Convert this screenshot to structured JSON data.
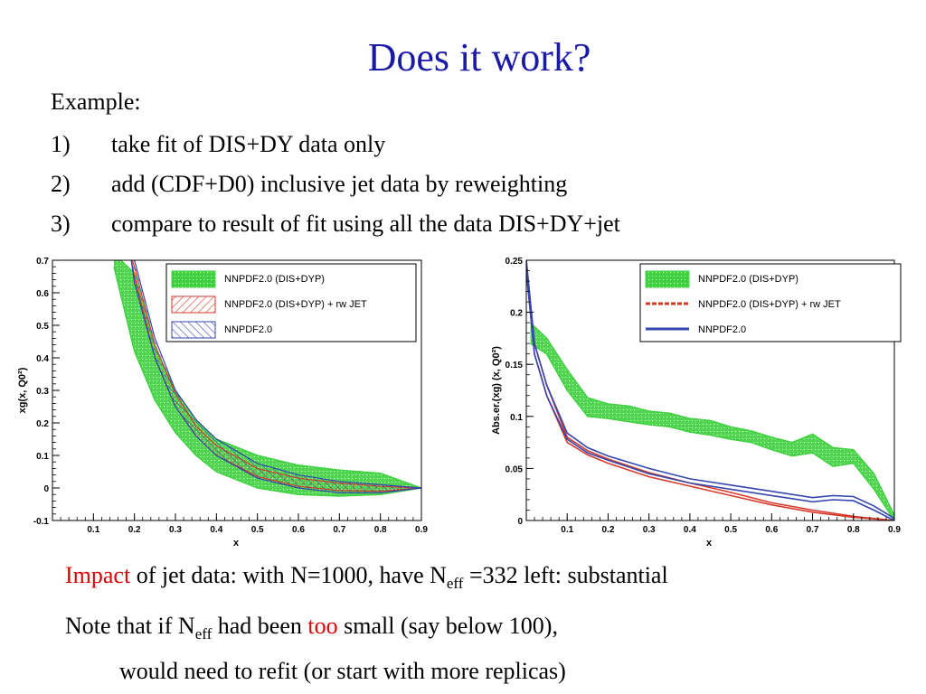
{
  "slide": {
    "title": "Does it work?",
    "example_label": "Example:",
    "steps": [
      {
        "num": "1)",
        "text": "take fit of DIS+DY data only"
      },
      {
        "num": "2)",
        "text": "add (CDF+D0) inclusive jet data by reweighting"
      },
      {
        "num": "3)",
        "text": "compare to result of fit using all the data DIS+DY+jet"
      }
    ],
    "impact": {
      "highlight": "Impact",
      "text_a": " of jet data: with N=1000, have N",
      "sub": "eff",
      "text_b": " =332 left: substantial"
    },
    "note": {
      "text_a": "Note that if N",
      "sub": "eff",
      "text_b": " had been ",
      "highlight": "too",
      "text_c": " small (say below 100),",
      "line2": "would need to refit (or start with more replicas)"
    }
  },
  "colors": {
    "title": "#1a1aa6",
    "highlight": "#e00000",
    "green_band": "#3fd13f",
    "red_band": "#d63a2a",
    "blue_band": "#3446b0"
  },
  "chart_data": [
    {
      "type": "area",
      "xlabel": "x",
      "ylabel": "xg(x, Q0²)",
      "xlim": [
        0.0,
        0.9
      ],
      "ylim": [
        -0.1,
        0.7
      ],
      "xticks": [
        "0.1",
        "0.2",
        "0.3",
        "0.4",
        "0.5",
        "0.6",
        "0.7",
        "0.8",
        "0.9"
      ],
      "yticks": [
        "-0.1",
        "0",
        "0.1",
        "0.2",
        "0.3",
        "0.4",
        "0.5",
        "0.6",
        "0.7"
      ],
      "legend_position": "top-right",
      "grid": false,
      "series": [
        {
          "name": "NNPDF2.0 (DIS+DYP)",
          "style": "green-band",
          "x": [
            0.15,
            0.2,
            0.25,
            0.3,
            0.35,
            0.4,
            0.5,
            0.6,
            0.7,
            0.8,
            0.9
          ],
          "lo": [
            0.68,
            0.42,
            0.27,
            0.17,
            0.1,
            0.05,
            0.0,
            -0.02,
            -0.025,
            -0.02,
            0.0
          ],
          "hi": [
            0.72,
            0.66,
            0.43,
            0.3,
            0.21,
            0.15,
            0.1,
            0.07,
            0.055,
            0.045,
            0.0
          ]
        },
        {
          "name": "NNPDF2.0 (DIS+DYP) + rw JET",
          "style": "red-band",
          "x": [
            0.19,
            0.2,
            0.25,
            0.3,
            0.35,
            0.4,
            0.5,
            0.6,
            0.7,
            0.8,
            0.9
          ],
          "lo": [
            0.72,
            0.65,
            0.4,
            0.25,
            0.16,
            0.1,
            0.035,
            0.005,
            -0.008,
            -0.01,
            0.0
          ],
          "hi": [
            0.72,
            0.68,
            0.44,
            0.29,
            0.19,
            0.13,
            0.06,
            0.03,
            0.015,
            0.005,
            0.0
          ]
        },
        {
          "name": "NNPDF2.0",
          "style": "blue-band",
          "x": [
            0.19,
            0.2,
            0.25,
            0.3,
            0.35,
            0.4,
            0.5,
            0.6,
            0.7,
            0.8,
            0.9
          ],
          "lo": [
            0.72,
            0.63,
            0.4,
            0.25,
            0.16,
            0.1,
            0.03,
            0.0,
            -0.015,
            -0.015,
            0.0
          ],
          "hi": [
            0.72,
            0.7,
            0.46,
            0.3,
            0.21,
            0.15,
            0.075,
            0.04,
            0.02,
            0.01,
            0.0
          ]
        }
      ]
    },
    {
      "type": "area",
      "xlabel": "x",
      "ylabel": "Abs.er.(xg) (x, Q0²)",
      "xlim": [
        0.0,
        0.9
      ],
      "ylim": [
        0,
        0.25
      ],
      "xticks": [
        "0.1",
        "0.2",
        "0.3",
        "0.4",
        "0.5",
        "0.6",
        "0.7",
        "0.8",
        "0.9"
      ],
      "yticks": [
        "0",
        "0.05",
        "0.1",
        "0.15",
        "0.2",
        "0.25"
      ],
      "legend_position": "top-right",
      "grid": false,
      "series": [
        {
          "name": "NNPDF2.0 (DIS+DYP)",
          "style": "green-band",
          "x": [
            0.01,
            0.05,
            0.1,
            0.15,
            0.2,
            0.25,
            0.3,
            0.35,
            0.4,
            0.45,
            0.5,
            0.55,
            0.6,
            0.65,
            0.7,
            0.75,
            0.8,
            0.85,
            0.9
          ],
          "lo": [
            0.17,
            0.16,
            0.125,
            0.1,
            0.098,
            0.095,
            0.092,
            0.09,
            0.085,
            0.082,
            0.078,
            0.075,
            0.068,
            0.062,
            0.065,
            0.052,
            0.055,
            0.03,
            0.0
          ],
          "hi": [
            0.19,
            0.175,
            0.145,
            0.118,
            0.112,
            0.11,
            0.105,
            0.103,
            0.098,
            0.096,
            0.09,
            0.086,
            0.08,
            0.075,
            0.083,
            0.07,
            0.068,
            0.045,
            0.005
          ]
        },
        {
          "name": "NNPDF2.0 (DIS+DYP) + rw JET",
          "style": "red-line",
          "x": [
            0.0,
            0.02,
            0.05,
            0.1,
            0.15,
            0.2,
            0.3,
            0.4,
            0.5,
            0.6,
            0.7,
            0.8,
            0.9
          ],
          "lo": [
            0.24,
            0.16,
            0.12,
            0.075,
            0.063,
            0.055,
            0.042,
            0.033,
            0.024,
            0.015,
            0.008,
            0.003,
            0.0
          ],
          "hi": [
            0.25,
            0.17,
            0.13,
            0.08,
            0.067,
            0.059,
            0.046,
            0.036,
            0.027,
            0.017,
            0.01,
            0.004,
            0.0
          ]
        },
        {
          "name": "NNPDF2.0",
          "style": "blue-line",
          "x": [
            0.0,
            0.02,
            0.05,
            0.1,
            0.15,
            0.2,
            0.3,
            0.4,
            0.5,
            0.6,
            0.7,
            0.75,
            0.8,
            0.85,
            0.9
          ],
          "lo": [
            0.24,
            0.16,
            0.12,
            0.078,
            0.065,
            0.058,
            0.045,
            0.036,
            0.03,
            0.024,
            0.018,
            0.02,
            0.019,
            0.01,
            0.0
          ],
          "hi": [
            0.25,
            0.17,
            0.13,
            0.084,
            0.07,
            0.062,
            0.05,
            0.04,
            0.034,
            0.028,
            0.022,
            0.024,
            0.023,
            0.014,
            0.002
          ]
        }
      ]
    }
  ]
}
